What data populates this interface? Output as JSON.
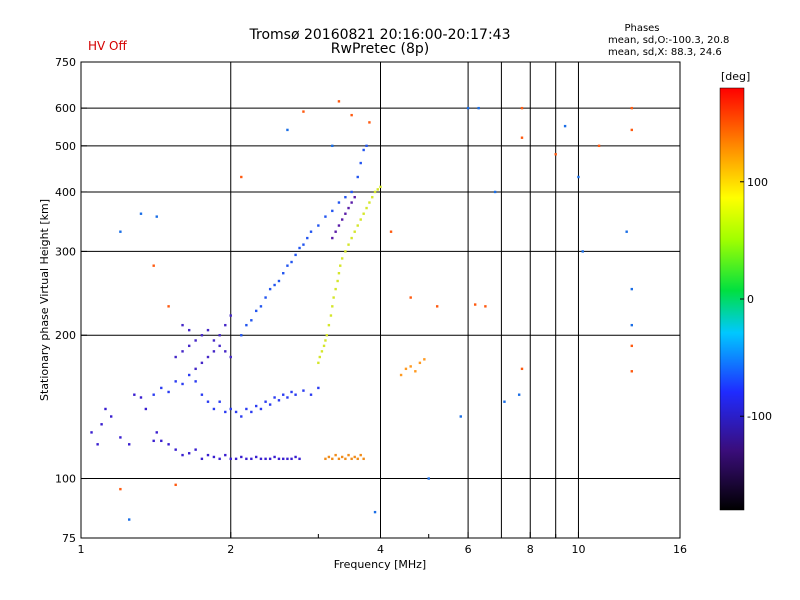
{
  "status_label": "HV Off",
  "title_line1": "Tromsø 20160821 20:16:00-20:17:43",
  "title_line2": "RwPretec (8p)",
  "phases": {
    "heading": "Phases",
    "line_o": "mean, sd,O:-100.3, 20.8",
    "line_x": "mean, sd,X: 88.3, 24.6"
  },
  "chart_data": {
    "type": "scatter",
    "xlabel": "Frequency [MHz]",
    "ylabel": "Stationary phase Virtual Height [km]",
    "xscale": "log",
    "yscale": "log",
    "xlim": [
      1,
      16
    ],
    "ylim": [
      75,
      750
    ],
    "x_ticks": [
      1,
      2,
      4,
      6,
      8,
      10,
      16
    ],
    "x_tick_labels": [
      "1",
      "2",
      "4",
      "6",
      "8",
      "10",
      "16"
    ],
    "x_grid": [
      2,
      4,
      6,
      7,
      8,
      9,
      10
    ],
    "x_minor": [
      3,
      5,
      9
    ],
    "y_ticks": [
      75,
      100,
      200,
      300,
      400,
      500,
      600,
      750
    ],
    "y_tick_labels": [
      "75",
      "100",
      "200",
      "300",
      "400",
      "500",
      "600",
      "750"
    ],
    "y_grid": [
      100,
      200,
      300,
      400,
      500,
      600
    ],
    "grid": true,
    "colorbar": {
      "label": "[deg]",
      "min": -180,
      "max": 180,
      "ticks": [
        100,
        0,
        -100
      ],
      "tick_labels": [
        "100",
        "0",
        "-100"
      ]
    },
    "series": [
      {
        "trace": "low-E",
        "color": "#3a1fd0",
        "points": [
          [
            1.05,
            125
          ],
          [
            1.08,
            118
          ],
          [
            1.1,
            130
          ],
          [
            1.12,
            140
          ],
          [
            1.15,
            135
          ],
          [
            1.2,
            122
          ],
          [
            1.25,
            118
          ],
          [
            1.28,
            150
          ],
          [
            1.32,
            148
          ],
          [
            1.35,
            140
          ],
          [
            1.4,
            120
          ],
          [
            1.42,
            125
          ],
          [
            1.45,
            120
          ],
          [
            1.5,
            118
          ],
          [
            1.55,
            115
          ],
          [
            1.6,
            112
          ],
          [
            1.65,
            113
          ],
          [
            1.7,
            115
          ],
          [
            1.75,
            110
          ],
          [
            1.8,
            112
          ],
          [
            1.85,
            111
          ],
          [
            1.9,
            110
          ],
          [
            1.95,
            112
          ],
          [
            2.0,
            110
          ],
          [
            2.05,
            110
          ],
          [
            2.1,
            111
          ],
          [
            2.15,
            110
          ],
          [
            2.2,
            110
          ],
          [
            2.25,
            111
          ],
          [
            2.3,
            110
          ],
          [
            2.35,
            110
          ],
          [
            2.4,
            110
          ],
          [
            2.45,
            111
          ],
          [
            2.5,
            110
          ],
          [
            2.55,
            110
          ],
          [
            2.6,
            110
          ],
          [
            2.65,
            110
          ],
          [
            2.7,
            111
          ],
          [
            2.75,
            110
          ]
        ]
      },
      {
        "trace": "F1-lower",
        "color": "#2b3cf2",
        "points": [
          [
            1.4,
            150
          ],
          [
            1.45,
            155
          ],
          [
            1.5,
            152
          ],
          [
            1.55,
            160
          ],
          [
            1.6,
            158
          ],
          [
            1.65,
            165
          ],
          [
            1.7,
            160
          ],
          [
            1.75,
            150
          ],
          [
            1.8,
            145
          ],
          [
            1.85,
            140
          ],
          [
            1.9,
            145
          ],
          [
            1.95,
            138
          ],
          [
            2.0,
            140
          ],
          [
            2.05,
            138
          ],
          [
            2.1,
            135
          ],
          [
            2.15,
            140
          ],
          [
            2.2,
            138
          ],
          [
            2.25,
            142
          ],
          [
            2.3,
            140
          ],
          [
            2.35,
            145
          ],
          [
            2.4,
            143
          ],
          [
            2.45,
            148
          ],
          [
            2.5,
            146
          ],
          [
            2.55,
            150
          ],
          [
            2.6,
            148
          ],
          [
            2.65,
            152
          ],
          [
            2.7,
            150
          ],
          [
            2.8,
            153
          ],
          [
            2.9,
            150
          ],
          [
            3.0,
            155
          ]
        ]
      },
      {
        "trace": "F-mid",
        "color": "#4527c8",
        "points": [
          [
            1.55,
            180
          ],
          [
            1.6,
            185
          ],
          [
            1.65,
            190
          ],
          [
            1.7,
            195
          ],
          [
            1.75,
            200
          ],
          [
            1.8,
            205
          ],
          [
            1.85,
            195
          ],
          [
            1.9,
            190
          ],
          [
            1.95,
            185
          ],
          [
            2.0,
            180
          ],
          [
            1.7,
            170
          ],
          [
            1.75,
            175
          ],
          [
            1.8,
            180
          ],
          [
            1.85,
            185
          ],
          [
            1.9,
            200
          ],
          [
            1.95,
            210
          ],
          [
            2.0,
            220
          ],
          [
            1.6,
            210
          ],
          [
            1.65,
            205
          ]
        ]
      },
      {
        "trace": "F2-O",
        "color": "#2255f0",
        "points": [
          [
            2.1,
            200
          ],
          [
            2.15,
            210
          ],
          [
            2.2,
            215
          ],
          [
            2.25,
            225
          ],
          [
            2.3,
            230
          ],
          [
            2.35,
            240
          ],
          [
            2.4,
            250
          ],
          [
            2.45,
            255
          ],
          [
            2.5,
            260
          ],
          [
            2.55,
            270
          ],
          [
            2.6,
            280
          ],
          [
            2.65,
            285
          ],
          [
            2.7,
            295
          ],
          [
            2.75,
            305
          ],
          [
            2.8,
            310
          ],
          [
            2.85,
            320
          ],
          [
            2.9,
            330
          ],
          [
            3.0,
            340
          ],
          [
            3.1,
            355
          ],
          [
            3.2,
            365
          ],
          [
            3.3,
            380
          ],
          [
            3.4,
            390
          ],
          [
            3.5,
            400
          ],
          [
            3.6,
            430
          ],
          [
            3.65,
            460
          ],
          [
            3.7,
            490
          ],
          [
            3.75,
            500
          ]
        ]
      },
      {
        "trace": "F2-X",
        "color": "#d4e62a",
        "points": [
          [
            3.0,
            175
          ],
          [
            3.02,
            180
          ],
          [
            3.05,
            185
          ],
          [
            3.08,
            190
          ],
          [
            3.1,
            195
          ],
          [
            3.12,
            200
          ],
          [
            3.15,
            210
          ],
          [
            3.18,
            220
          ],
          [
            3.2,
            230
          ],
          [
            3.22,
            240
          ],
          [
            3.25,
            250
          ],
          [
            3.28,
            260
          ],
          [
            3.3,
            270
          ],
          [
            3.32,
            280
          ],
          [
            3.35,
            290
          ],
          [
            3.4,
            300
          ],
          [
            3.45,
            310
          ],
          [
            3.5,
            320
          ],
          [
            3.55,
            330
          ],
          [
            3.6,
            340
          ],
          [
            3.65,
            350
          ],
          [
            3.7,
            360
          ],
          [
            3.75,
            370
          ],
          [
            3.8,
            380
          ],
          [
            3.85,
            390
          ],
          [
            3.9,
            400
          ],
          [
            3.95,
            405
          ],
          [
            4.0,
            410
          ]
        ]
      },
      {
        "trace": "E-X",
        "color": "#f08c1a",
        "points": [
          [
            3.1,
            110
          ],
          [
            3.15,
            111
          ],
          [
            3.2,
            110
          ],
          [
            3.25,
            112
          ],
          [
            3.3,
            110
          ],
          [
            3.35,
            111
          ],
          [
            3.4,
            110
          ],
          [
            3.45,
            112
          ],
          [
            3.5,
            110
          ],
          [
            3.55,
            111
          ],
          [
            3.6,
            110
          ],
          [
            3.65,
            112
          ],
          [
            3.7,
            110
          ]
        ]
      },
      {
        "trace": "F1-X",
        "color": "#ff9a20",
        "points": [
          [
            4.4,
            165
          ],
          [
            4.5,
            170
          ],
          [
            4.6,
            172
          ],
          [
            4.7,
            168
          ],
          [
            4.8,
            175
          ],
          [
            4.9,
            178
          ]
        ]
      },
      {
        "trace": "top-F2",
        "color": "#5a1ca8",
        "points": [
          [
            3.2,
            320
          ],
          [
            3.25,
            330
          ],
          [
            3.3,
            340
          ],
          [
            3.35,
            350
          ],
          [
            3.4,
            360
          ],
          [
            3.45,
            370
          ],
          [
            3.5,
            380
          ],
          [
            3.55,
            390
          ]
        ]
      },
      {
        "trace": "scattered",
        "color": "#ff5a10",
        "points": [
          [
            1.2,
            95
          ],
          [
            1.4,
            280
          ],
          [
            1.5,
            230
          ],
          [
            1.55,
            97
          ],
          [
            2.1,
            430
          ],
          [
            2.8,
            590
          ],
          [
            3.3,
            620
          ],
          [
            3.5,
            580
          ],
          [
            3.8,
            560
          ],
          [
            4.2,
            330
          ],
          [
            4.6,
            240
          ],
          [
            5.2,
            230
          ],
          [
            6.2,
            232
          ],
          [
            6.5,
            230
          ],
          [
            7.7,
            600
          ],
          [
            7.7,
            520
          ],
          [
            7.7,
            170
          ],
          [
            9.0,
            480
          ],
          [
            11.0,
            500
          ],
          [
            12.8,
            600
          ],
          [
            12.8,
            540
          ],
          [
            12.8,
            190
          ],
          [
            12.8,
            168
          ]
        ]
      },
      {
        "trace": "scattered-blue",
        "color": "#1a6ee6",
        "points": [
          [
            1.2,
            330
          ],
          [
            1.32,
            360
          ],
          [
            1.42,
            355
          ],
          [
            2.6,
            540
          ],
          [
            3.2,
            500
          ],
          [
            5.0,
            100
          ],
          [
            5.8,
            135
          ],
          [
            6.0,
            600
          ],
          [
            6.3,
            600
          ],
          [
            6.8,
            400
          ],
          [
            7.1,
            145
          ],
          [
            7.6,
            150
          ],
          [
            9.4,
            550
          ],
          [
            10.0,
            430
          ],
          [
            10.2,
            300
          ],
          [
            12.5,
            330
          ],
          [
            12.8,
            250
          ],
          [
            12.8,
            210
          ],
          [
            3.9,
            85
          ],
          [
            1.25,
            82
          ]
        ]
      }
    ]
  }
}
